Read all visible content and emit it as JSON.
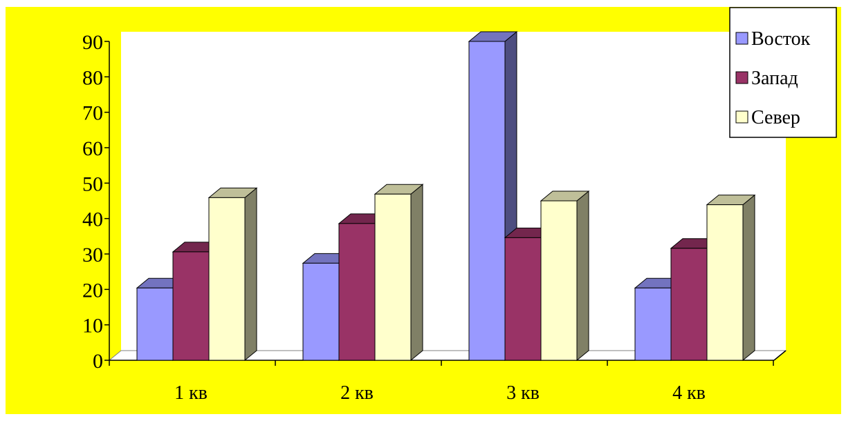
{
  "chart_data": {
    "type": "bar",
    "style": "3d-clustered-column",
    "categories": [
      "1 кв",
      "2 кв",
      "3 кв",
      "4 кв"
    ],
    "series": [
      {
        "name": "Восток",
        "values": [
          20.4,
          27.4,
          90,
          20.4
        ],
        "color": "#9999ff"
      },
      {
        "name": "Запад",
        "values": [
          30.6,
          38.6,
          34.6,
          31.6
        ],
        "color": "#993366"
      },
      {
        "name": "Север",
        "values": [
          45.9,
          46.9,
          45,
          43.9
        ],
        "color": "#ffffcc"
      }
    ],
    "ylim": [
      0,
      90
    ],
    "yticks": [
      0,
      10,
      20,
      30,
      40,
      50,
      60,
      70,
      80,
      90
    ],
    "grid": false,
    "legend_position": "top-right",
    "background_color": "#ffff00",
    "plot_wall_color": "#ffffff"
  }
}
